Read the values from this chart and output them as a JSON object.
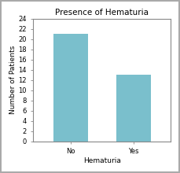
{
  "title": "Presence of Hematuria",
  "xlabel": "Hematuria",
  "ylabel": "Number of Patients",
  "categories": [
    "No",
    "Yes"
  ],
  "values": [
    21,
    13
  ],
  "bar_color": "#7abfcc",
  "ylim": [
    0,
    24
  ],
  "yticks": [
    0,
    2,
    4,
    6,
    8,
    10,
    12,
    14,
    16,
    18,
    20,
    22,
    24
  ],
  "title_fontsize": 7.5,
  "axis_label_fontsize": 6.5,
  "tick_fontsize": 6,
  "bar_width": 0.55,
  "background_color": "#ffffff",
  "spine_color": "#888888",
  "figure_border_color": "#aaaaaa",
  "xlim": [
    -0.6,
    1.6
  ]
}
